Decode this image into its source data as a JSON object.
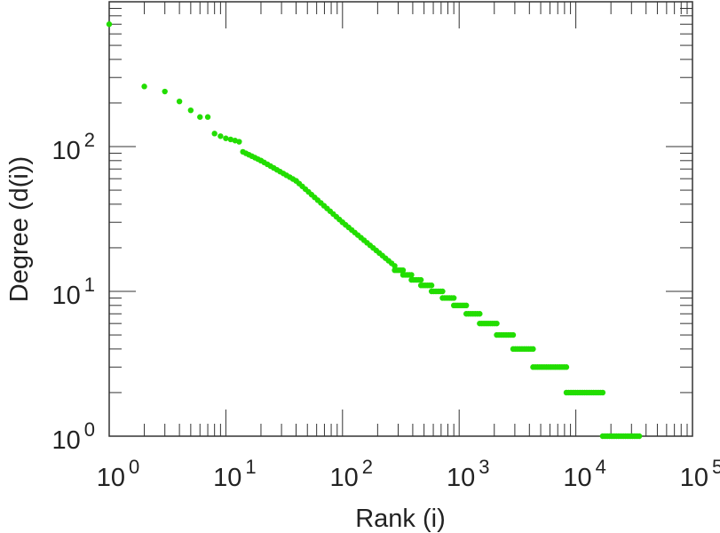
{
  "chart_data": {
    "type": "scatter",
    "title": "",
    "xlabel": "Rank (i)",
    "ylabel": "Degree (d(i))",
    "x_scale": "log",
    "y_scale": "log",
    "xlim": [
      1,
      100000
    ],
    "ylim": [
      1,
      1000
    ],
    "grid": false,
    "marker_color": "#22dd00",
    "axis_color": "#333333",
    "x_ticks": [
      {
        "base": "10",
        "exp": "0"
      },
      {
        "base": "10",
        "exp": "1"
      },
      {
        "base": "10",
        "exp": "2"
      },
      {
        "base": "10",
        "exp": "3"
      },
      {
        "base": "10",
        "exp": "4"
      },
      {
        "base": "10",
        "exp": "5"
      }
    ],
    "y_ticks": [
      {
        "base": "10",
        "exp": "0"
      },
      {
        "base": "10",
        "exp": "1"
      },
      {
        "base": "10",
        "exp": "2"
      }
    ],
    "points": [
      [
        1,
        700
      ],
      [
        2,
        260
      ],
      [
        3,
        240
      ],
      [
        4,
        205
      ],
      [
        5,
        178
      ],
      [
        6,
        160
      ],
      [
        7,
        160
      ],
      [
        8,
        123
      ],
      [
        9,
        118
      ],
      [
        10,
        114
      ],
      [
        11,
        112
      ],
      [
        12,
        110
      ],
      [
        13,
        108
      ]
    ],
    "trend_segments": [
      {
        "x_from": 14,
        "x_to": 20,
        "y_from": 92,
        "y_to": 80
      },
      {
        "x_from": 20,
        "x_to": 40,
        "y_from": 80,
        "y_to": 58
      },
      {
        "x_from": 40,
        "x_to": 100,
        "y_from": 58,
        "y_to": 30
      },
      {
        "x_from": 100,
        "x_to": 280,
        "y_from": 30,
        "y_to": 15
      }
    ],
    "plateaus": [
      {
        "y": 14,
        "x_from": 280,
        "x_to": 330
      },
      {
        "y": 13,
        "x_from": 330,
        "x_to": 390
      },
      {
        "y": 12,
        "x_from": 390,
        "x_to": 470
      },
      {
        "y": 11,
        "x_from": 470,
        "x_to": 580
      },
      {
        "y": 10,
        "x_from": 580,
        "x_to": 720
      },
      {
        "y": 9,
        "x_from": 720,
        "x_to": 900
      },
      {
        "y": 8,
        "x_from": 900,
        "x_to": 1150
      },
      {
        "y": 7,
        "x_from": 1150,
        "x_to": 1500
      },
      {
        "y": 6,
        "x_from": 1500,
        "x_to": 2100
      },
      {
        "y": 5,
        "x_from": 2100,
        "x_to": 2900
      },
      {
        "y": 4,
        "x_from": 2900,
        "x_to": 4300
      },
      {
        "y": 3,
        "x_from": 4300,
        "x_to": 8300
      },
      {
        "y": 2,
        "x_from": 8300,
        "x_to": 17000
      },
      {
        "y": 1,
        "x_from": 17000,
        "x_to": 35000
      }
    ]
  }
}
